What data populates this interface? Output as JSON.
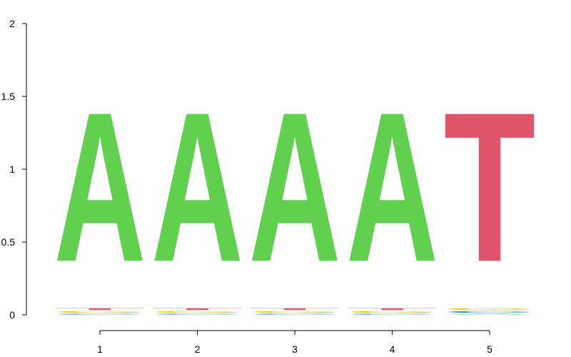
{
  "chart_data": {
    "type": "sequence-logo",
    "title": "",
    "xlabel": "",
    "ylabel": "",
    "ylim": [
      0,
      2
    ],
    "yticks": [
      "0",
      "0.5",
      "1",
      "1.5",
      "2"
    ],
    "ytick_values": [
      0,
      0.5,
      1,
      1.5,
      2
    ],
    "positions": [
      "1",
      "2",
      "3",
      "4",
      "5"
    ],
    "colors": {
      "A": "#61D04F",
      "C": "#2297E6",
      "G": "#F5C710",
      "T": "#DF536B"
    },
    "stacks": [
      [
        {
          "letter": "C",
          "height": 0.01
        },
        {
          "letter": "G",
          "height": 0.02
        },
        {
          "letter": "T",
          "height": 0.02
        },
        {
          "letter": "A",
          "height": 1.64
        }
      ],
      [
        {
          "letter": "C",
          "height": 0.01
        },
        {
          "letter": "G",
          "height": 0.02
        },
        {
          "letter": "T",
          "height": 0.02
        },
        {
          "letter": "A",
          "height": 1.64
        }
      ],
      [
        {
          "letter": "C",
          "height": 0.01
        },
        {
          "letter": "G",
          "height": 0.02
        },
        {
          "letter": "T",
          "height": 0.02
        },
        {
          "letter": "A",
          "height": 1.64
        }
      ],
      [
        {
          "letter": "C",
          "height": 0.01
        },
        {
          "letter": "G",
          "height": 0.02
        },
        {
          "letter": "T",
          "height": 0.02
        },
        {
          "letter": "A",
          "height": 1.64
        }
      ],
      [
        {
          "letter": "A",
          "height": 0.01
        },
        {
          "letter": "C",
          "height": 0.02
        },
        {
          "letter": "G",
          "height": 0.02
        },
        {
          "letter": "T",
          "height": 1.64
        }
      ]
    ]
  }
}
